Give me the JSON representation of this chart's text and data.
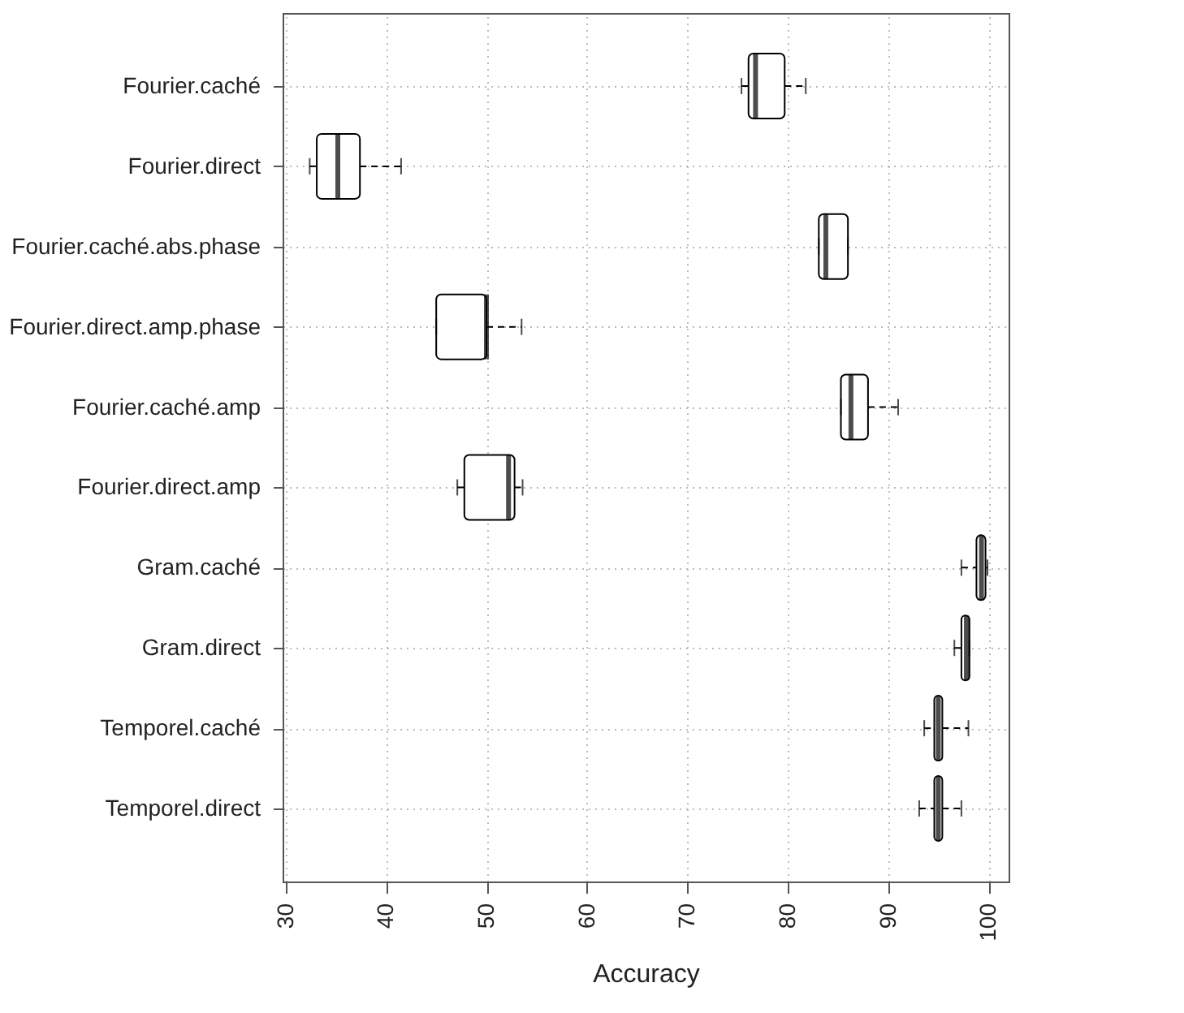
{
  "chart_data": {
    "type": "box",
    "orientation": "horizontal",
    "xlabel": "Accuracy",
    "categories": [
      "Fourier.caché",
      "Fourier.direct",
      "Fourier.caché.abs.phase",
      "Fourier.direct.amp.phase",
      "Fourier.caché.amp",
      "Fourier.direct.amp",
      "Gram.caché",
      "Gram.direct",
      "Temporel.caché",
      "Temporel.direct"
    ],
    "boxes": [
      {
        "low": 75.4,
        "q1": 76.1,
        "median": 76.8,
        "q3": 79.7,
        "high": 81.8
      },
      {
        "low": 32.4,
        "q1": 33.1,
        "median": 35.2,
        "q3": 37.4,
        "high": 41.5
      },
      {
        "low": 83.1,
        "q1": 83.1,
        "median": 83.8,
        "q3": 86.0,
        "high": 86.0
      },
      {
        "low": 45.0,
        "q1": 45.0,
        "median": 50.0,
        "q3": 50.0,
        "high": 53.5
      },
      {
        "low": 85.3,
        "q1": 85.3,
        "median": 86.3,
        "q3": 88.0,
        "high": 91.0
      },
      {
        "low": 47.1,
        "q1": 47.8,
        "median": 52.2,
        "q3": 52.8,
        "high": 53.6
      },
      {
        "low": 97.3,
        "q1": 98.8,
        "median": 99.3,
        "q3": 99.7,
        "high": 99.9
      },
      {
        "low": 96.6,
        "q1": 97.3,
        "median": 97.8,
        "q3": 98.1,
        "high": 98.1
      },
      {
        "low": 93.6,
        "q1": 94.6,
        "median": 95.0,
        "q3": 95.4,
        "high": 98.0
      },
      {
        "low": 93.1,
        "q1": 94.6,
        "median": 95.0,
        "q3": 95.4,
        "high": 97.3
      }
    ],
    "xlim": [
      29.7,
      102
    ],
    "xticks": [
      30,
      40,
      50,
      60,
      70,
      80,
      90,
      100
    ],
    "grid": true,
    "color": "#000000"
  }
}
